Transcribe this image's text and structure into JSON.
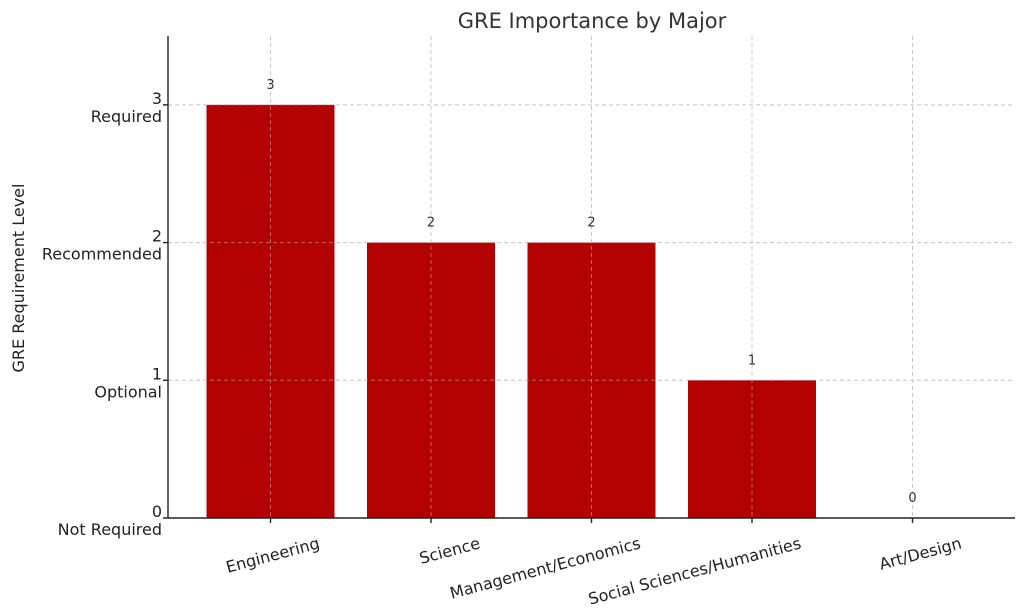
{
  "chart_data": {
    "type": "bar",
    "title": "GRE Importance by Major",
    "xlabel": "",
    "ylabel": "GRE Requirement Level",
    "categories": [
      "Engineering",
      "Science",
      "Management/Economics",
      "Social Sciences/Humanities",
      "Art/Design"
    ],
    "values": [
      3,
      2,
      2,
      1,
      0
    ],
    "data_labels": [
      "3",
      "2",
      "2",
      "1",
      "0"
    ],
    "ylim": [
      0,
      3.5
    ],
    "y_ticks": [
      {
        "value": 0,
        "label": "0",
        "name": "Not Required"
      },
      {
        "value": 1,
        "label": "1",
        "name": "Optional"
      },
      {
        "value": 2,
        "label": "2",
        "name": "Recommended"
      },
      {
        "value": 3,
        "label": "3",
        "name": "Required"
      }
    ],
    "grid": true,
    "bar_color": "#b30000"
  }
}
